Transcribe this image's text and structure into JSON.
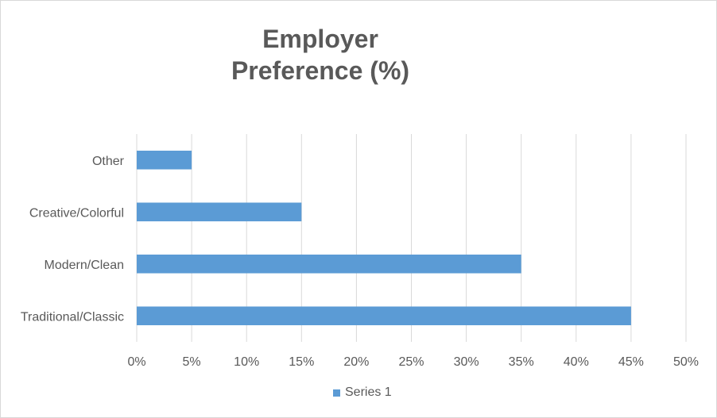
{
  "chart_data": {
    "type": "bar",
    "orientation": "horizontal",
    "title_lines": [
      "Employer",
      "Preference (%)"
    ],
    "categories": [
      "Traditional/Classic",
      "Modern/Clean",
      "Creative/Colorful",
      "Other"
    ],
    "series": [
      {
        "name": "Series 1",
        "values": [
          45,
          35,
          15,
          5
        ],
        "color": "#5b9bd5"
      }
    ],
    "xlim": [
      0,
      50
    ],
    "x_ticks": [
      "0%",
      "5%",
      "10%",
      "15%",
      "20%",
      "25%",
      "30%",
      "35%",
      "40%",
      "45%",
      "50%"
    ],
    "grid": "vertical",
    "legend_position": "bottom",
    "xlabel": "",
    "ylabel": ""
  }
}
